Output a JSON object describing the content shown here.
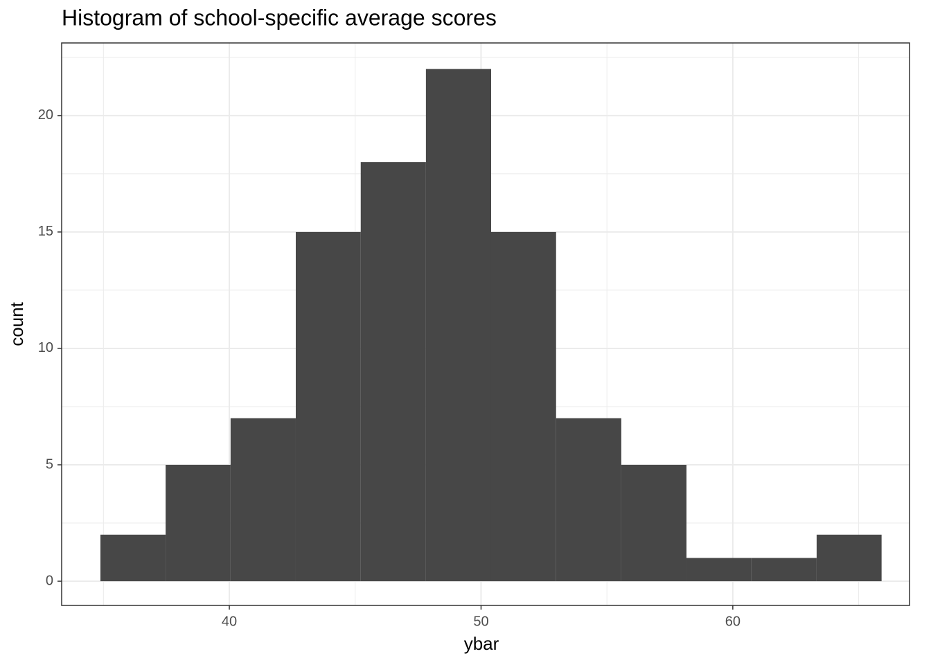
{
  "chart_data": {
    "type": "histogram",
    "title": "Histogram of school-specific average scores",
    "x_label": "ybar",
    "y_label": "count",
    "bins": [
      34.88,
      37.47,
      40.05,
      42.64,
      45.22,
      47.81,
      50.4,
      52.98,
      55.57,
      58.16,
      60.74,
      63.33,
      65.91
    ],
    "values": [
      2,
      5,
      7,
      15,
      18,
      22,
      15,
      7,
      5,
      1,
      1,
      2
    ],
    "color": "#474747",
    "xlim": [
      33.34,
      67.02
    ],
    "xticks": [
      40,
      50,
      60
    ],
    "ylim": [
      -1.04,
      23.12
    ],
    "yticks": [
      0,
      5,
      10,
      15,
      20
    ],
    "grid": true
  }
}
